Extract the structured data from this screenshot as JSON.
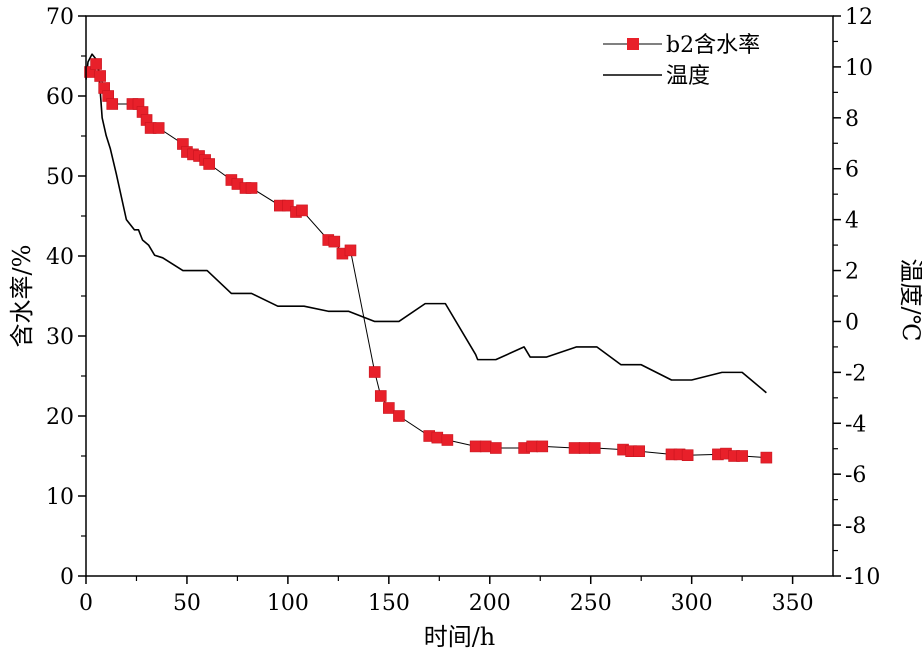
{
  "chart_data": {
    "type": "line",
    "x_axis": {
      "label": "时间/h",
      "min": 0,
      "max": 370,
      "ticks": [
        0,
        50,
        100,
        150,
        200,
        250,
        300,
        350
      ]
    },
    "y_left": {
      "label": "含水率/%",
      "min": 0,
      "max": 70,
      "ticks": [
        0,
        10,
        20,
        30,
        40,
        50,
        60,
        70
      ]
    },
    "y_right": {
      "label": "温度/℃",
      "min": -10,
      "max": 12,
      "ticks": [
        -10,
        -8,
        -6,
        -4,
        -2,
        0,
        2,
        4,
        6,
        8,
        10,
        12
      ]
    },
    "legend_position": "top-right",
    "series": [
      {
        "name": "b2含水率",
        "axis": "left",
        "color": "#e8202a",
        "marker": "square",
        "points": [
          [
            2,
            63.0
          ],
          [
            5,
            64.0
          ],
          [
            7,
            62.5
          ],
          [
            9,
            61.0
          ],
          [
            11,
            60.0
          ],
          [
            13,
            59.0
          ],
          [
            23,
            59.0
          ],
          [
            26,
            59.0
          ],
          [
            28,
            58.0
          ],
          [
            30,
            57.0
          ],
          [
            32,
            56.0
          ],
          [
            36,
            56.0
          ],
          [
            48,
            54.0
          ],
          [
            50,
            53.0
          ],
          [
            53,
            52.7
          ],
          [
            56,
            52.5
          ],
          [
            59,
            52.0
          ],
          [
            61,
            51.5
          ],
          [
            72,
            49.5
          ],
          [
            75,
            49.0
          ],
          [
            79,
            48.5
          ],
          [
            82,
            48.5
          ],
          [
            96,
            46.3
          ],
          [
            100,
            46.3
          ],
          [
            104,
            45.5
          ],
          [
            107,
            45.7
          ],
          [
            120,
            42.0
          ],
          [
            123,
            41.8
          ],
          [
            127,
            40.3
          ],
          [
            131,
            40.7
          ],
          [
            143,
            25.5
          ],
          [
            146,
            22.5
          ],
          [
            150,
            21.0
          ],
          [
            155,
            20.0
          ],
          [
            170,
            17.5
          ],
          [
            174,
            17.3
          ],
          [
            179,
            17.0
          ],
          [
            193,
            16.2
          ],
          [
            198,
            16.2
          ],
          [
            203,
            16.0
          ],
          [
            217,
            16.0
          ],
          [
            221,
            16.2
          ],
          [
            226,
            16.2
          ],
          [
            242,
            16.0
          ],
          [
            247,
            16.0
          ],
          [
            252,
            16.0
          ],
          [
            266,
            15.8
          ],
          [
            270,
            15.6
          ],
          [
            274,
            15.6
          ],
          [
            290,
            15.2
          ],
          [
            294,
            15.2
          ],
          [
            298,
            15.1
          ],
          [
            313,
            15.2
          ],
          [
            317,
            15.3
          ],
          [
            321,
            15.0
          ],
          [
            325,
            15.0
          ],
          [
            337,
            14.8
          ]
        ]
      },
      {
        "name": "温度",
        "axis": "right",
        "color": "#000000",
        "marker": "none",
        "points": [
          [
            0,
            9.5
          ],
          [
            1,
            10.2
          ],
          [
            3,
            10.5
          ],
          [
            6,
            10.2
          ],
          [
            8,
            8.0
          ],
          [
            10,
            7.3
          ],
          [
            12,
            6.8
          ],
          [
            15,
            5.8
          ],
          [
            20,
            4.0
          ],
          [
            24,
            3.6
          ],
          [
            26,
            3.6
          ],
          [
            28,
            3.2
          ],
          [
            31,
            3.0
          ],
          [
            34,
            2.6
          ],
          [
            38,
            2.5
          ],
          [
            48,
            2.0
          ],
          [
            60,
            2.0
          ],
          [
            72,
            1.1
          ],
          [
            82,
            1.1
          ],
          [
            95,
            0.6
          ],
          [
            108,
            0.6
          ],
          [
            120,
            0.4
          ],
          [
            130,
            0.4
          ],
          [
            143,
            0.0
          ],
          [
            155,
            0.0
          ],
          [
            168,
            0.7
          ],
          [
            178,
            0.7
          ],
          [
            193,
            -1.3
          ],
          [
            194,
            -1.5
          ],
          [
            203,
            -1.5
          ],
          [
            217,
            -1.0
          ],
          [
            220,
            -1.4
          ],
          [
            228,
            -1.4
          ],
          [
            243,
            -1.0
          ],
          [
            253,
            -1.0
          ],
          [
            265,
            -1.7
          ],
          [
            275,
            -1.7
          ],
          [
            290,
            -2.3
          ],
          [
            300,
            -2.3
          ],
          [
            315,
            -2.0
          ],
          [
            325,
            -2.0
          ],
          [
            337,
            -2.8
          ]
        ]
      }
    ]
  }
}
